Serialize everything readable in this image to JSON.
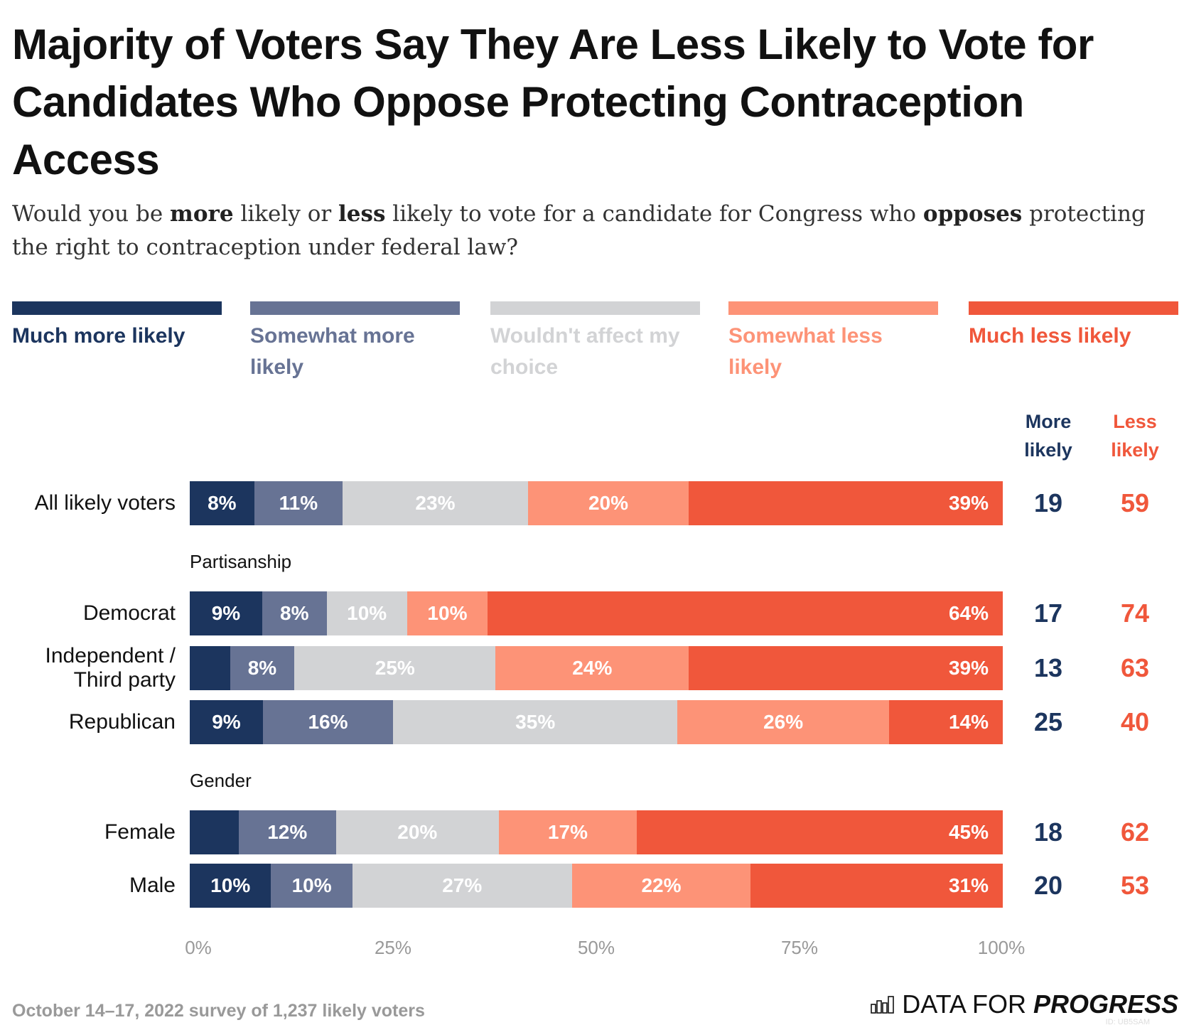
{
  "title": "Majority of Voters Say They Are Less Likely to Vote for Candidates Who Oppose Protecting Contraception Access",
  "subtitle": {
    "p1": "Would you be ",
    "b1": "more",
    "p2": " likely or ",
    "b2": "less",
    "p3": " likely to vote for a candidate for Congress who ",
    "b3": "opposes",
    "p4": " protecting the right to contraception under federal law?"
  },
  "legend": [
    {
      "label": "Much more likely",
      "color": "#1c355e",
      "text_color": "#1c355e"
    },
    {
      "label": "Somewhat more likely",
      "color": "#677394",
      "text_color": "#677394"
    },
    {
      "label": "Wouldn't affect my choice",
      "color": "#d2d3d5",
      "text_color": "#d2d3d5"
    },
    {
      "label": "Somewhat less likely",
      "color": "#fd9377",
      "text_color": "#fd9377"
    },
    {
      "label": "Much less likely",
      "color": "#f0573b",
      "text_color": "#f0573b"
    }
  ],
  "column_headers": {
    "more": "More likely",
    "less": "Less likely"
  },
  "chart_data": {
    "type": "bar",
    "orientation": "horizontal-stacked-100",
    "title": "Majority of Voters Say They Are Less Likely to Vote for Candidates Who Oppose Protecting Contraception Access",
    "series_names": [
      "Much more likely",
      "Somewhat more likely",
      "Wouldn't affect my choice",
      "Somewhat less likely",
      "Much less likely"
    ],
    "xlim": [
      0,
      100
    ],
    "x_ticks": [
      "0%",
      "25%",
      "50%",
      "75%",
      "100%"
    ],
    "groups": [
      {
        "label": ""
      },
      {
        "label": "Partisanship"
      },
      {
        "label": "Gender"
      }
    ],
    "rows": [
      {
        "label": "All likely voters",
        "group": 0,
        "values": [
          8,
          11,
          23,
          20,
          39
        ],
        "labels": [
          "8%",
          "11%",
          "23%",
          "20%",
          "39%"
        ],
        "more": "19",
        "less": "59"
      },
      {
        "label": "Democrat",
        "group": 1,
        "values": [
          9,
          8,
          10,
          10,
          64
        ],
        "labels": [
          "9%",
          "8%",
          "10%",
          "10%",
          "64%"
        ],
        "more": "17",
        "less": "74"
      },
      {
        "label": "Independent / Third party",
        "group": 1,
        "values": [
          5,
          8,
          25,
          24,
          39
        ],
        "labels": [
          "",
          "8%",
          "25%",
          "24%",
          "39%"
        ],
        "more": "13",
        "less": "63"
      },
      {
        "label": "Republican",
        "group": 1,
        "values": [
          9,
          16,
          35,
          26,
          14
        ],
        "labels": [
          "9%",
          "16%",
          "35%",
          "26%",
          "14%"
        ],
        "more": "25",
        "less": "40"
      },
      {
        "label": "Female",
        "group": 2,
        "values": [
          6,
          12,
          20,
          17,
          45
        ],
        "labels": [
          "",
          "12%",
          "20%",
          "17%",
          "45%"
        ],
        "more": "18",
        "less": "62"
      },
      {
        "label": "Male",
        "group": 2,
        "values": [
          10,
          10,
          27,
          22,
          31
        ],
        "labels": [
          "10%",
          "10%",
          "27%",
          "22%",
          "31%"
        ],
        "more": "20",
        "less": "53"
      }
    ]
  },
  "footer": "October 14–17, 2022 survey of 1,237 likely voters",
  "logo": {
    "light": "DATA FOR",
    "bold": "PROGRESS",
    "id": "ID: UB5SAM"
  }
}
